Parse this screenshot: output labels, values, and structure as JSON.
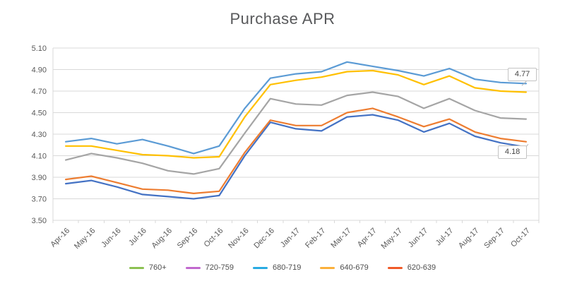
{
  "page": {
    "title": "Purchase APR"
  },
  "chart_data": {
    "type": "line",
    "title": "Purchase APR",
    "x": [
      "Apr-16",
      "May-16",
      "Jun-16",
      "Jul-16",
      "Aug-16",
      "Sep-16",
      "Oct-16",
      "Nov-16",
      "Dec-16",
      "Jan-17",
      "Feb-17",
      "Mar-17",
      "Apr-17",
      "May-17",
      "Jun-17",
      "Jul-17",
      "Aug-17",
      "Sep-17",
      "Oct-17"
    ],
    "xlabel": "",
    "ylabel": "",
    "ylim": [
      3.5,
      5.1
    ],
    "yticks": [
      5.1,
      4.9,
      4.7,
      4.5,
      4.3,
      4.1,
      3.9,
      3.7,
      3.5
    ],
    "grid": "horizontal",
    "legend_position": "bottom",
    "series": [
      {
        "name": "760+",
        "legend_color": "#8CC152",
        "line_color": "#4472C4",
        "values": [
          3.84,
          3.87,
          3.81,
          3.74,
          3.72,
          3.7,
          3.73,
          4.1,
          4.41,
          4.35,
          4.33,
          4.46,
          4.48,
          4.43,
          4.32,
          4.4,
          4.28,
          4.22,
          4.18
        ]
      },
      {
        "name": "720-759",
        "legend_color": "#C168CE",
        "line_color": "#ED7D31",
        "values": [
          3.88,
          3.91,
          3.85,
          3.79,
          3.78,
          3.75,
          3.77,
          4.13,
          4.43,
          4.38,
          4.38,
          4.5,
          4.54,
          4.46,
          4.37,
          4.44,
          4.32,
          4.26,
          4.23
        ]
      },
      {
        "name": "680-719",
        "legend_color": "#29ABE2",
        "line_color": "#A5A5A5",
        "values": [
          4.06,
          4.12,
          4.08,
          4.03,
          3.96,
          3.93,
          3.98,
          4.31,
          4.63,
          4.58,
          4.57,
          4.66,
          4.69,
          4.65,
          4.54,
          4.63,
          4.52,
          4.45,
          4.44
        ]
      },
      {
        "name": "640-679",
        "legend_color": "#FBB03B",
        "line_color": "#FFC000",
        "values": [
          4.19,
          4.19,
          4.15,
          4.11,
          4.1,
          4.08,
          4.09,
          4.46,
          4.76,
          4.8,
          4.83,
          4.88,
          4.89,
          4.85,
          4.76,
          4.84,
          4.73,
          4.7,
          4.69
        ]
      },
      {
        "name": "620-639",
        "legend_color": "#F05A28",
        "line_color": "#5B9BD5",
        "values": [
          4.23,
          4.26,
          4.21,
          4.25,
          4.19,
          4.12,
          4.19,
          4.54,
          4.82,
          4.86,
          4.88,
          4.97,
          4.93,
          4.89,
          4.84,
          4.91,
          4.81,
          4.78,
          4.77
        ]
      }
    ],
    "annotations": [
      {
        "label": "4.77",
        "series": "620-639",
        "x": "Oct-17",
        "value": 4.77
      },
      {
        "label": "4.18",
        "series": "760+",
        "x": "Oct-17",
        "value": 4.18
      }
    ]
  }
}
